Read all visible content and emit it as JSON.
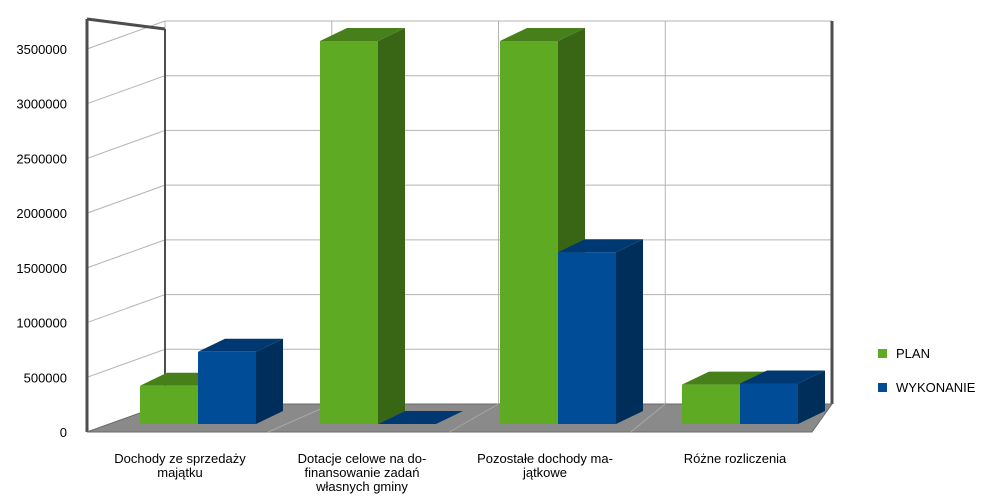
{
  "chart_data": {
    "type": "bar",
    "title": "",
    "xlabel": "",
    "ylabel": "",
    "ylim": [
      0,
      3500000
    ],
    "yticks": [
      "0",
      "500000",
      "1000000",
      "1500000",
      "2000000",
      "2500000",
      "3000000",
      "3500000"
    ],
    "ytick_values": [
      0,
      500000,
      1000000,
      1500000,
      2000000,
      2500000,
      3000000,
      3500000
    ],
    "grid": true,
    "legend_position": "right",
    "style": "3d",
    "categories": [
      [
        "Dochody ze sprzedaży",
        "majątku"
      ],
      [
        "Dotacje celowe na do-",
        "finansowanie zadań",
        "własnych gminy"
      ],
      [
        "Pozostałe dochody ma-",
        "jątkowe"
      ],
      [
        "Różne rozliczenia"
      ]
    ],
    "series": [
      {
        "name": "PLAN",
        "color": "#5eaa22",
        "values": [
          350000,
          3500000,
          3500000,
          360000
        ]
      },
      {
        "name": "WYKONANIE",
        "color": "#004c97",
        "values": [
          660000,
          0,
          1570000,
          370000
        ]
      }
    ]
  }
}
